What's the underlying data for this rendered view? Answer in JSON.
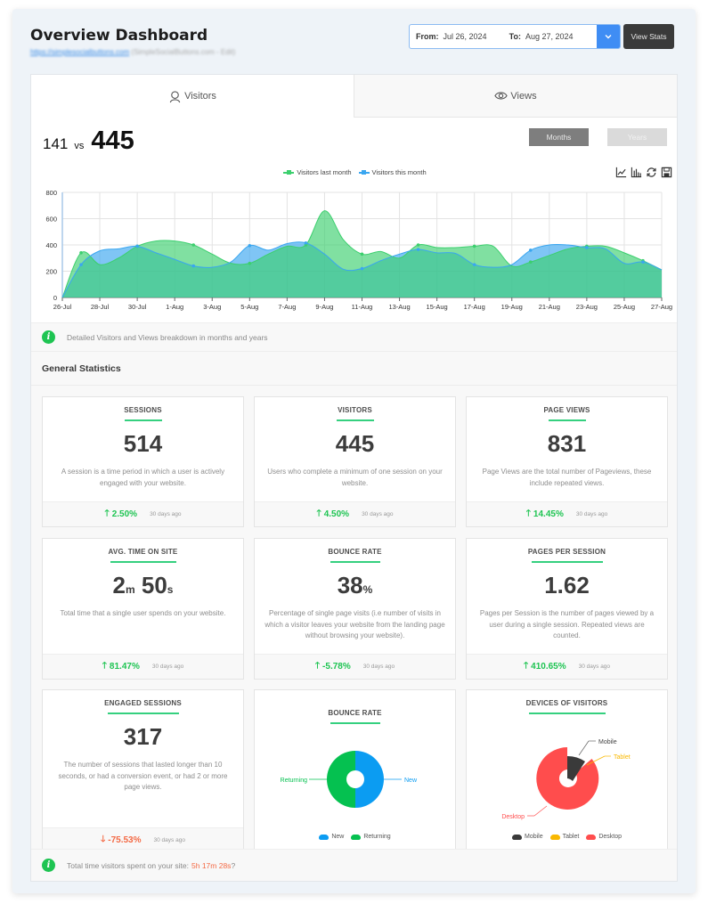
{
  "header": {
    "title": "Overview Dashboard",
    "site_link": "https://simplesocialbuttons.com",
    "site_meta": "(SimpleSocialButtons.com - Edit)"
  },
  "date_range": {
    "from_label": "From:",
    "from_value": "Jul 26, 2024",
    "to_label": "To:",
    "to_value": "Aug 27, 2024",
    "dropdown_icon": "chevron-down-icon"
  },
  "view_stats_label": "View Stats",
  "tabs": [
    {
      "label": "Visitors",
      "icon": "user-icon",
      "active": true
    },
    {
      "label": "Views",
      "icon": "eye-icon",
      "active": false
    }
  ],
  "comparison": {
    "previous": "141",
    "vs": "vs",
    "current": "445"
  },
  "period_buttons": {
    "months": "Months",
    "years": "Years",
    "active": "Months"
  },
  "chart_toolbox": [
    "line-chart-icon",
    "bar-chart-icon",
    "refresh-icon",
    "save-icon"
  ],
  "colors": {
    "last_month": "#3ccf6e",
    "this_month": "#3aa6f0",
    "accent_green": "#1ec452",
    "negative": "#f46a45",
    "new": "#0b9cf2",
    "returning": "#05c150",
    "mobile": "#3a3a3a",
    "tablet": "#f9b800",
    "desktop": "#ff4d4d"
  },
  "chart_data": {
    "type": "area",
    "title": "",
    "xlabel": "",
    "ylabel": "",
    "ylim": [
      0,
      800
    ],
    "yticks": [
      0,
      200,
      400,
      600,
      800
    ],
    "grid": true,
    "legend_position": "top",
    "x": [
      "26-Jul",
      "27-Jul",
      "28-Jul",
      "29-Jul",
      "30-Jul",
      "31-Jul",
      "1-Aug",
      "2-Aug",
      "3-Aug",
      "4-Aug",
      "5-Aug",
      "6-Aug",
      "7-Aug",
      "8-Aug",
      "9-Aug",
      "10-Aug",
      "11-Aug",
      "12-Aug",
      "13-Aug",
      "14-Aug",
      "15-Aug",
      "16-Aug",
      "17-Aug",
      "18-Aug",
      "19-Aug",
      "20-Aug",
      "21-Aug",
      "22-Aug",
      "23-Aug",
      "24-Aug",
      "25-Aug",
      "26-Aug",
      "27-Aug"
    ],
    "xtick_labels": [
      "26-Jul",
      "28-Jul",
      "30-Jul",
      "1-Aug",
      "3-Aug",
      "5-Aug",
      "7-Aug",
      "9-Aug",
      "11-Aug",
      "13-Aug",
      "15-Aug",
      "17-Aug",
      "19-Aug",
      "21-Aug",
      "23-Aug",
      "25-Aug",
      "27-Aug"
    ],
    "series": [
      {
        "name": "Visitors last month",
        "values": [
          0,
          340,
          250,
          300,
          390,
          430,
          430,
          400,
          330,
          260,
          260,
          330,
          390,
          400,
          660,
          440,
          330,
          350,
          300,
          400,
          380,
          380,
          390,
          390,
          240,
          270,
          320,
          370,
          390,
          390,
          340,
          280,
          210
        ]
      },
      {
        "name": "Visitors this month",
        "values": [
          0,
          250,
          355,
          370,
          390,
          340,
          290,
          240,
          230,
          270,
          395,
          360,
          410,
          415,
          330,
          215,
          220,
          280,
          330,
          365,
          340,
          335,
          250,
          230,
          250,
          360,
          400,
          400,
          380,
          370,
          260,
          270,
          210
        ]
      }
    ]
  },
  "info_note": "Detailed Visitors and Views breakdown in months and years",
  "general_statistics": {
    "title": "General Statistics",
    "cards": [
      {
        "title": "SESSIONS",
        "value": "514",
        "desc": "A session is a time period in which a user is actively engaged with your website.",
        "delta": "2.50%",
        "direction": "up",
        "ago": "30 days ago"
      },
      {
        "title": "VISITORS",
        "value": "445",
        "desc": "Users who complete a minimum of one session on your website.",
        "delta": "4.50%",
        "direction": "up",
        "ago": "30 days ago"
      },
      {
        "title": "PAGE VIEWS",
        "value": "831",
        "desc": "Page Views are the total number of Pageviews, these include repeated views.",
        "delta": "14.45%",
        "direction": "up",
        "ago": "30 days ago"
      },
      {
        "title": "AVG. TIME ON SITE",
        "value_min": "2",
        "unit_min": "m",
        "value_sec": "50",
        "unit_sec": "s",
        "desc": "Total time that a single user spends on your website.",
        "delta": "81.47%",
        "direction": "up",
        "ago": "30 days ago"
      },
      {
        "title": "BOUNCE RATE",
        "value": "38",
        "unit": "%",
        "desc": "Percentage of single page visits (i.e number of visits in which a visitor leaves your website from the landing page without browsing your website).",
        "delta": "-5.78%",
        "direction": "up",
        "ago": "30 days ago"
      },
      {
        "title": "PAGES PER SESSION",
        "value": "1.62",
        "desc": "Pages per Session is the number of pages viewed by a user during a single session. Repeated views are counted.",
        "delta": "410.65%",
        "direction": "up",
        "ago": "30 days ago"
      },
      {
        "title": "ENGAGED SESSIONS",
        "value": "317",
        "desc": "The number of sessions that lasted longer than 10 seconds, or had a conversion event, or had 2 or more page views.",
        "delta": "-75.53%",
        "direction": "down",
        "ago": "30 days ago"
      }
    ],
    "bounce_chart": {
      "title": "BOUNCE RATE",
      "type": "pie",
      "slices": [
        {
          "label": "New",
          "value": 50
        },
        {
          "label": "Returning",
          "value": 50
        }
      ],
      "legend": [
        "New",
        "Returning"
      ]
    },
    "devices_chart": {
      "title": "DEVICES OF VISITORS",
      "type": "pie",
      "slices": [
        {
          "label": "Mobile",
          "value": 8
        },
        {
          "label": "Tablet",
          "value": 0.5
        },
        {
          "label": "Desktop",
          "value": 91.5
        }
      ],
      "legend": [
        "Mobile",
        "Tablet",
        "Desktop"
      ]
    }
  },
  "footer": {
    "text": "Total time visitors spent on your site:",
    "time": "5h 17m 28s",
    "suffix": "?"
  }
}
